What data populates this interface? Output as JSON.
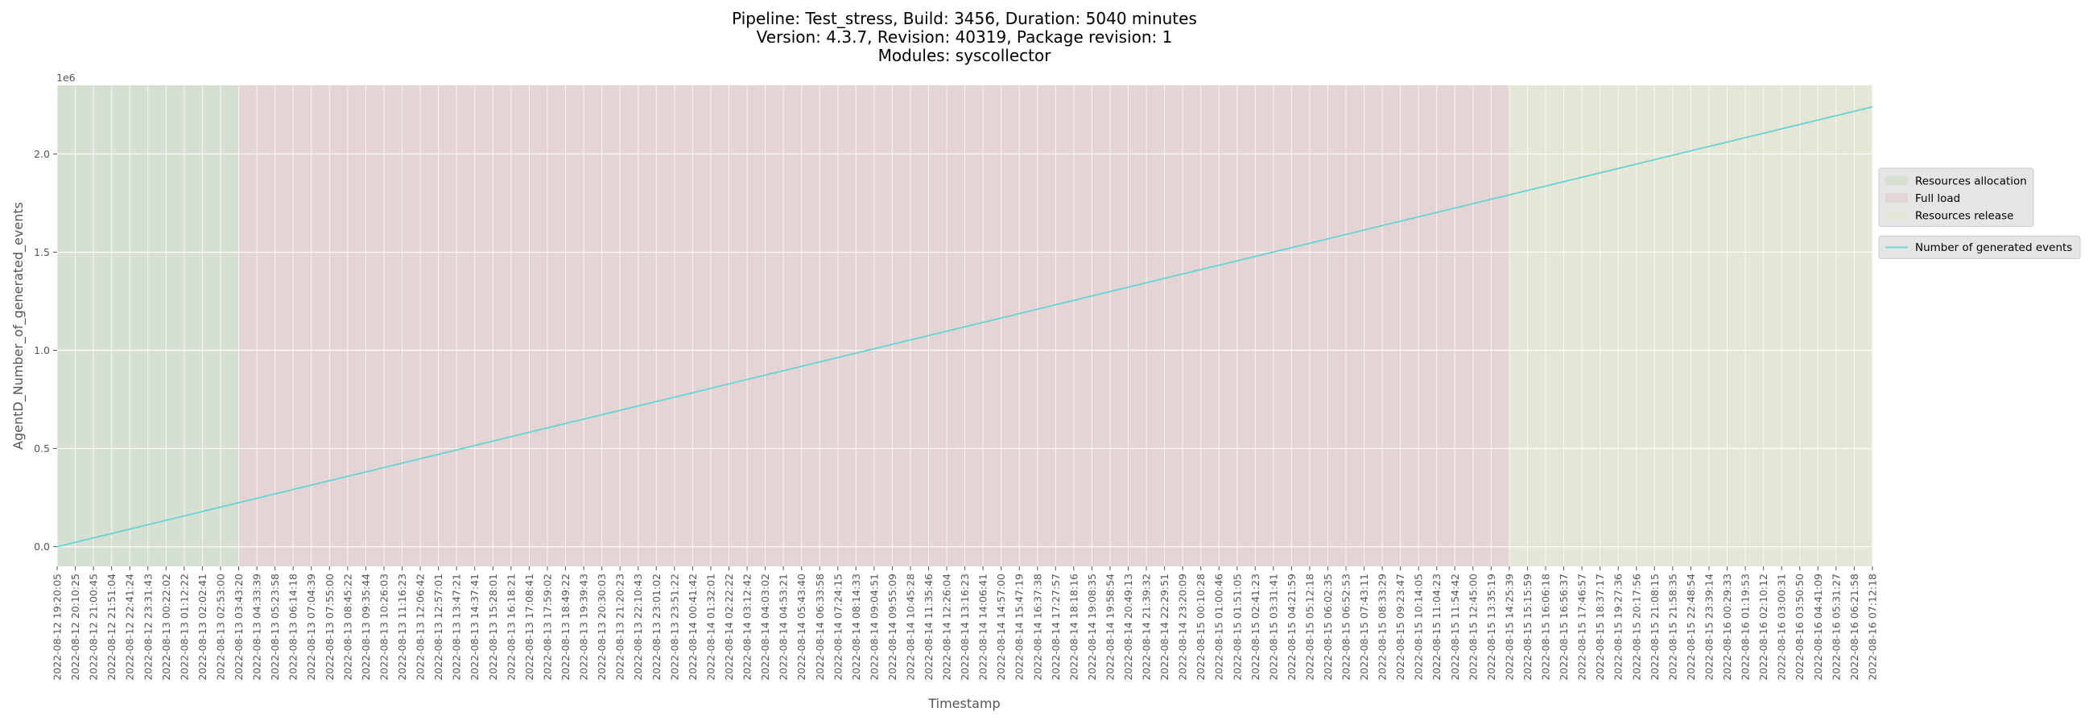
{
  "chart_data": {
    "type": "line",
    "title_lines": [
      "Pipeline: Test_stress, Build: 3456, Duration: 5040 minutes",
      "Version: 4.3.7, Revision: 40319, Package revision: 1",
      "Modules: syscollector"
    ],
    "xlabel": "Timestamp",
    "ylabel": "AgentD_Number_of_generated_events",
    "y_offset_label": "1e6",
    "ylim": [
      -0.1,
      2.35
    ],
    "y_scale_factor": 1000000,
    "y_ticks": [
      0.0,
      0.5,
      1.0,
      1.5,
      2.0
    ],
    "y_tick_labels": [
      "0.0",
      "0.5",
      "1.0",
      "1.5",
      "2.0"
    ],
    "grid": true,
    "background": "#e5e5e5",
    "x_ticks": [
      "2022-08-12 19:20:05",
      "2022-08-12 20:10:25",
      "2022-08-12 21:00:45",
      "2022-08-12 21:51:04",
      "2022-08-12 22:41:24",
      "2022-08-12 23:31:43",
      "2022-08-13 00:22:02",
      "2022-08-13 01:12:22",
      "2022-08-13 02:02:41",
      "2022-08-13 02:53:00",
      "2022-08-13 03:43:20",
      "2022-08-13 04:33:39",
      "2022-08-13 05:23:58",
      "2022-08-13 06:14:18",
      "2022-08-13 07:04:39",
      "2022-08-13 07:55:00",
      "2022-08-13 08:45:22",
      "2022-08-13 09:35:44",
      "2022-08-13 10:26:03",
      "2022-08-13 11:16:23",
      "2022-08-13 12:06:42",
      "2022-08-13 12:57:01",
      "2022-08-13 13:47:21",
      "2022-08-13 14:37:41",
      "2022-08-13 15:28:01",
      "2022-08-13 16:18:21",
      "2022-08-13 17:08:41",
      "2022-08-13 17:59:02",
      "2022-08-13 18:49:22",
      "2022-08-13 19:39:43",
      "2022-08-13 20:30:03",
      "2022-08-13 21:20:23",
      "2022-08-13 22:10:43",
      "2022-08-13 23:01:02",
      "2022-08-13 23:51:22",
      "2022-08-14 00:41:42",
      "2022-08-14 01:32:01",
      "2022-08-14 02:22:22",
      "2022-08-14 03:12:42",
      "2022-08-14 04:03:02",
      "2022-08-14 04:53:21",
      "2022-08-14 05:43:40",
      "2022-08-14 06:33:58",
      "2022-08-14 07:24:15",
      "2022-08-14 08:14:33",
      "2022-08-14 09:04:51",
      "2022-08-14 09:55:09",
      "2022-08-14 10:45:28",
      "2022-08-14 11:35:46",
      "2022-08-14 12:26:04",
      "2022-08-14 13:16:23",
      "2022-08-14 14:06:41",
      "2022-08-14 14:57:00",
      "2022-08-14 15:47:19",
      "2022-08-14 16:37:38",
      "2022-08-14 17:27:57",
      "2022-08-14 18:18:16",
      "2022-08-14 19:08:35",
      "2022-08-14 19:58:54",
      "2022-08-14 20:49:13",
      "2022-08-14 21:39:32",
      "2022-08-14 22:29:51",
      "2022-08-14 23:20:09",
      "2022-08-15 00:10:28",
      "2022-08-15 01:00:46",
      "2022-08-15 01:51:05",
      "2022-08-15 02:41:23",
      "2022-08-15 03:31:41",
      "2022-08-15 04:21:59",
      "2022-08-15 05:12:18",
      "2022-08-15 06:02:35",
      "2022-08-15 06:52:53",
      "2022-08-15 07:43:11",
      "2022-08-15 08:33:29",
      "2022-08-15 09:23:47",
      "2022-08-15 10:14:05",
      "2022-08-15 11:04:23",
      "2022-08-15 11:54:42",
      "2022-08-15 12:45:00",
      "2022-08-15 13:35:19",
      "2022-08-15 14:25:39",
      "2022-08-15 15:15:59",
      "2022-08-15 16:06:18",
      "2022-08-15 16:56:37",
      "2022-08-15 17:46:57",
      "2022-08-15 18:37:17",
      "2022-08-15 19:27:36",
      "2022-08-15 20:17:56",
      "2022-08-15 21:08:15",
      "2022-08-15 21:58:35",
      "2022-08-15 22:48:54",
      "2022-08-15 23:39:14",
      "2022-08-16 00:29:33",
      "2022-08-16 01:19:53",
      "2022-08-16 02:10:12",
      "2022-08-16 03:00:31",
      "2022-08-16 03:50:50",
      "2022-08-16 04:41:09",
      "2022-08-16 05:31:27",
      "2022-08-16 06:21:58",
      "2022-08-16 07:12:18"
    ],
    "phases": [
      {
        "name": "Resources allocation",
        "start": "2022-08-12 19:20:05",
        "end": "2022-08-13 03:43:20",
        "color": "#d5e0d3"
      },
      {
        "name": "Full load",
        "start": "2022-08-13 03:43:20",
        "end": "2022-08-15 14:25:39",
        "color": "#e4d4d4"
      },
      {
        "name": "Resources release",
        "start": "2022-08-15 14:25:39",
        "end": "2022-08-16 07:12:18",
        "color": "#e5e6d6"
      }
    ],
    "series": [
      {
        "name": "Number of generated events",
        "color": "#66d4d4",
        "x": [
          "2022-08-12 19:20:05",
          "2022-08-16 07:12:18"
        ],
        "y": [
          0.0,
          2.24
        ]
      }
    ],
    "legend_position": "right"
  }
}
